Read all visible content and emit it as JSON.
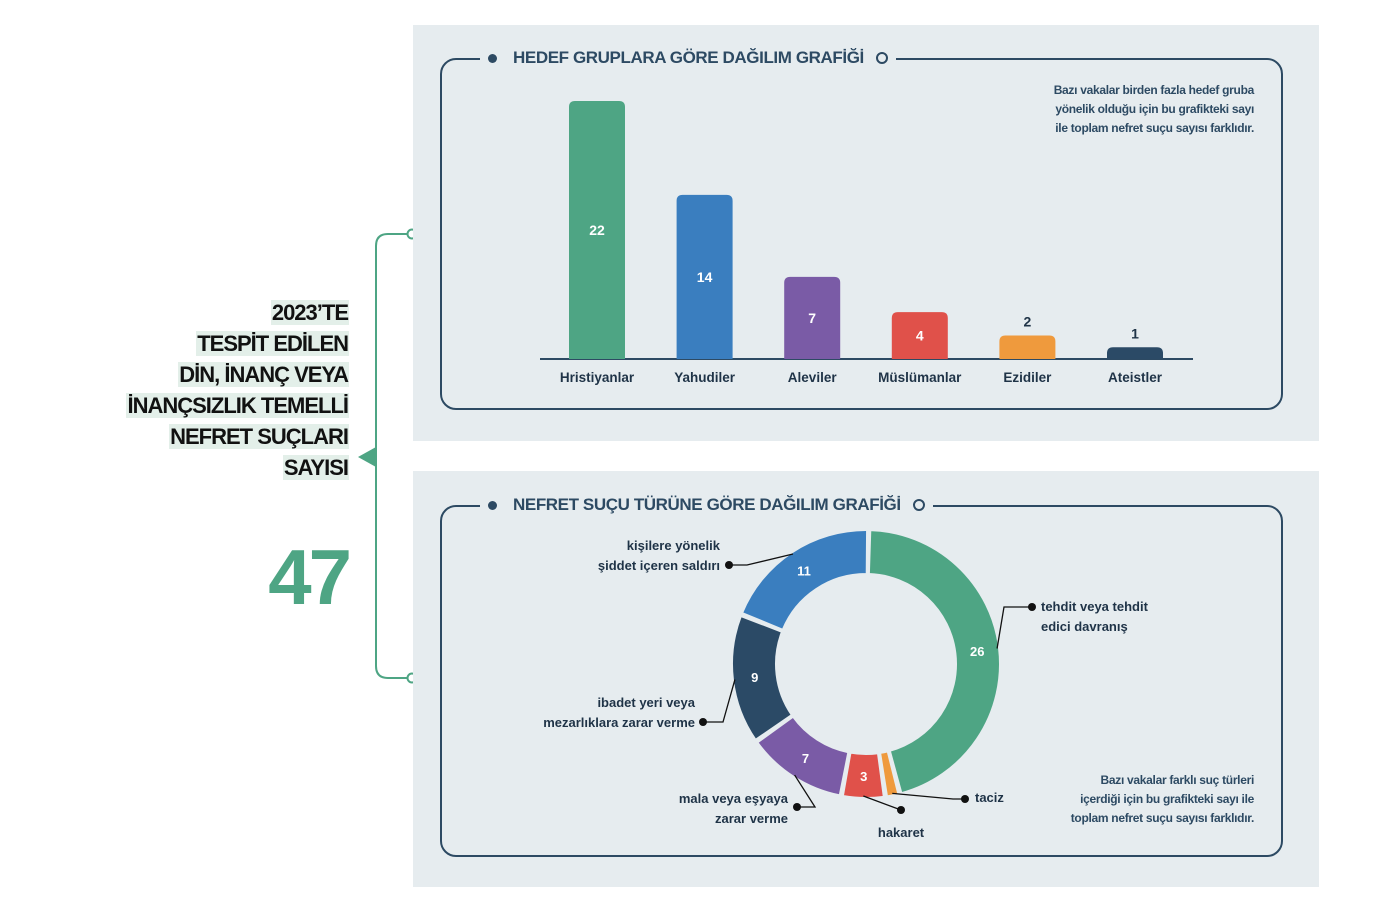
{
  "left": {
    "lines": [
      "2023’TE",
      "TESPİT EDİLEN",
      "DİN, İNANÇ VEYA",
      "İNANÇSIZLIK TEMELLİ",
      "NEFRET SUÇLARI",
      "SAYISI"
    ],
    "total": "47",
    "accent_color": "#4ea584"
  },
  "chart_data": [
    {
      "type": "bar",
      "title": "HEDEF GRUPLARA GÖRE DAĞILIM GRAFİĞİ",
      "note_lines": [
        "Bazı vakalar birden fazla hedef gruba",
        "yönelik olduğu için bu grafikteki sayı",
        "ile toplam nefret suçu sayısı farklıdır."
      ],
      "categories": [
        "Hristiyanlar",
        "Yahudiler",
        "Aleviler",
        "Müslümanlar",
        "Ezidiler",
        "Ateistler"
      ],
      "values": [
        22,
        14,
        7,
        4,
        2,
        1
      ],
      "colors": [
        "#4ea584",
        "#3a7ebf",
        "#7a5ba6",
        "#e0514a",
        "#ef9a3d",
        "#2b4a66"
      ],
      "ylim": [
        0,
        22
      ],
      "grid": false
    },
    {
      "type": "pie",
      "title": "NEFRET SUÇU TÜRÜNE GÖRE DAĞILIM GRAFİĞİ",
      "note_lines": [
        "Bazı vakalar farklı suç türleri",
        "içerdiği için bu grafikteki sayı ile",
        "toplam nefret suçu sayısı farklıdır."
      ],
      "slices": [
        {
          "label_lines": [
            "tehdit veya tehdit",
            "edici davranış"
          ],
          "value": 26,
          "color": "#4ea584"
        },
        {
          "label_lines": [
            "taciz"
          ],
          "value": 1,
          "color": "#ef9a3d"
        },
        {
          "label_lines": [
            "hakaret"
          ],
          "value": 3,
          "color": "#e0514a"
        },
        {
          "label_lines": [
            "mala veya eşyaya",
            "zarar verme"
          ],
          "value": 7,
          "color": "#7a5ba6"
        },
        {
          "label_lines": [
            "ibadet yeri veya",
            "mezarlıklara zarar verme"
          ],
          "value": 9,
          "color": "#2b4a66"
        },
        {
          "label_lines": [
            "kişilere yönelik",
            "şiddet içeren saldırı"
          ],
          "value": 11,
          "color": "#3a7ebf"
        }
      ]
    }
  ]
}
